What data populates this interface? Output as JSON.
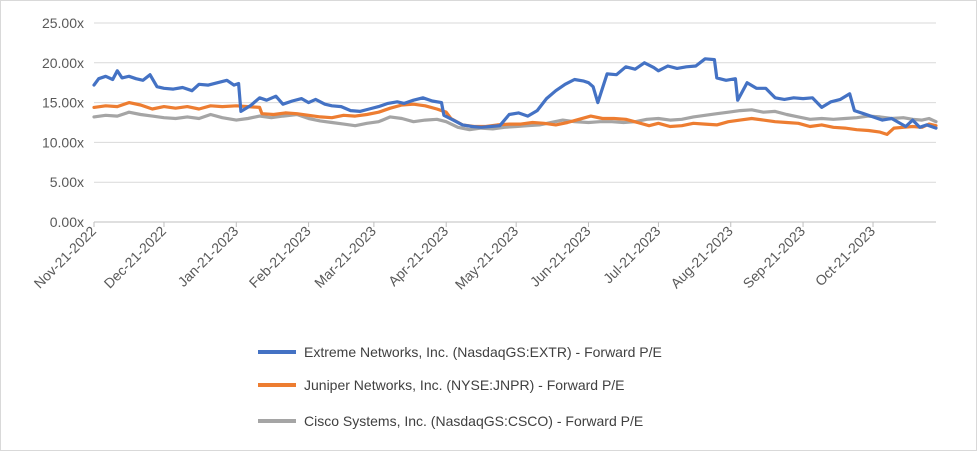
{
  "chart_data": {
    "type": "line",
    "title": "",
    "xlabel": "",
    "ylabel": "",
    "ylim": [
      0,
      25
    ],
    "y_ticks": [
      "0.00x",
      "5.00x",
      "10.00x",
      "15.00x",
      "20.00x",
      "25.00x"
    ],
    "y_tick_values": [
      0,
      5,
      10,
      15,
      20,
      25
    ],
    "x_range": [
      "2022-11-21",
      "2023-11-17"
    ],
    "x_ticks": [
      "Nov-21-2022",
      "Dec-21-2022",
      "Jan-21-2023",
      "Feb-21-2023",
      "Mar-21-2023",
      "Apr-21-2023",
      "May-21-2023",
      "Jun-21-2023",
      "Jul-21-2023",
      "Aug-21-2023",
      "Sep-21-2023",
      "Oct-21-2023"
    ],
    "x_tick_dates": [
      "2022-11-21",
      "2022-12-21",
      "2023-01-21",
      "2023-02-21",
      "2023-03-21",
      "2023-04-21",
      "2023-05-21",
      "2023-06-21",
      "2023-07-21",
      "2023-08-21",
      "2023-09-21",
      "2023-10-21"
    ],
    "grid": "horizontal",
    "legend_position": "bottom",
    "series": [
      {
        "name": "Extreme Networks, Inc. (NasdaqGS:EXTR) - Forward P/E",
        "color": "#4472C4",
        "points": [
          [
            "2022-11-21",
            17.2
          ],
          [
            "2022-11-23",
            18.0
          ],
          [
            "2022-11-26",
            18.3
          ],
          [
            "2022-11-29",
            17.9
          ],
          [
            "2022-12-01",
            19.0
          ],
          [
            "2022-12-03",
            18.1
          ],
          [
            "2022-12-06",
            18.3
          ],
          [
            "2022-12-09",
            18.0
          ],
          [
            "2022-12-12",
            17.8
          ],
          [
            "2022-12-15",
            18.5
          ],
          [
            "2022-12-18",
            17.0
          ],
          [
            "2022-12-21",
            16.8
          ],
          [
            "2022-12-25",
            16.7
          ],
          [
            "2022-12-29",
            16.9
          ],
          [
            "2023-01-02",
            16.5
          ],
          [
            "2023-01-05",
            17.3
          ],
          [
            "2023-01-09",
            17.2
          ],
          [
            "2023-01-13",
            17.5
          ],
          [
            "2023-01-17",
            17.8
          ],
          [
            "2023-01-20",
            17.2
          ],
          [
            "2023-01-22",
            17.4
          ],
          [
            "2023-01-23",
            13.9
          ],
          [
            "2023-01-27",
            14.6
          ],
          [
            "2023-01-31",
            15.6
          ],
          [
            "2023-02-03",
            15.3
          ],
          [
            "2023-02-07",
            15.8
          ],
          [
            "2023-02-10",
            14.8
          ],
          [
            "2023-02-14",
            15.2
          ],
          [
            "2023-02-18",
            15.5
          ],
          [
            "2023-02-21",
            15.0
          ],
          [
            "2023-02-24",
            15.4
          ],
          [
            "2023-02-28",
            14.8
          ],
          [
            "2023-03-03",
            14.6
          ],
          [
            "2023-03-07",
            14.5
          ],
          [
            "2023-03-11",
            14.0
          ],
          [
            "2023-03-15",
            13.9
          ],
          [
            "2023-03-19",
            14.2
          ],
          [
            "2023-03-23",
            14.5
          ],
          [
            "2023-03-27",
            14.9
          ],
          [
            "2023-03-31",
            15.1
          ],
          [
            "2023-04-03",
            14.9
          ],
          [
            "2023-04-07",
            15.3
          ],
          [
            "2023-04-11",
            15.6
          ],
          [
            "2023-04-15",
            15.2
          ],
          [
            "2023-04-19",
            15.0
          ],
          [
            "2023-04-20",
            13.4
          ],
          [
            "2023-04-24",
            12.8
          ],
          [
            "2023-04-28",
            12.2
          ],
          [
            "2023-05-02",
            12.0
          ],
          [
            "2023-05-06",
            11.9
          ],
          [
            "2023-05-10",
            12.0
          ],
          [
            "2023-05-14",
            12.1
          ],
          [
            "2023-05-18",
            13.5
          ],
          [
            "2023-05-22",
            13.7
          ],
          [
            "2023-05-26",
            13.3
          ],
          [
            "2023-05-30",
            14.0
          ],
          [
            "2023-06-03",
            15.5
          ],
          [
            "2023-06-07",
            16.5
          ],
          [
            "2023-06-11",
            17.3
          ],
          [
            "2023-06-15",
            17.9
          ],
          [
            "2023-06-19",
            17.7
          ],
          [
            "2023-06-21",
            17.5
          ],
          [
            "2023-06-23",
            17.0
          ],
          [
            "2023-06-25",
            15.0
          ],
          [
            "2023-06-29",
            18.6
          ],
          [
            "2023-07-03",
            18.5
          ],
          [
            "2023-07-07",
            19.5
          ],
          [
            "2023-07-11",
            19.2
          ],
          [
            "2023-07-15",
            20.0
          ],
          [
            "2023-07-19",
            19.4
          ],
          [
            "2023-07-21",
            19.0
          ],
          [
            "2023-07-25",
            19.6
          ],
          [
            "2023-07-29",
            19.3
          ],
          [
            "2023-08-02",
            19.5
          ],
          [
            "2023-08-06",
            19.6
          ],
          [
            "2023-08-10",
            20.5
          ],
          [
            "2023-08-14",
            20.4
          ],
          [
            "2023-08-15",
            18.1
          ],
          [
            "2023-08-19",
            17.8
          ],
          [
            "2023-08-23",
            18.0
          ],
          [
            "2023-08-24",
            15.3
          ],
          [
            "2023-08-28",
            17.5
          ],
          [
            "2023-09-01",
            16.8
          ],
          [
            "2023-09-05",
            16.8
          ],
          [
            "2023-09-09",
            15.6
          ],
          [
            "2023-09-13",
            15.4
          ],
          [
            "2023-09-17",
            15.6
          ],
          [
            "2023-09-21",
            15.5
          ],
          [
            "2023-09-25",
            15.6
          ],
          [
            "2023-09-29",
            14.4
          ],
          [
            "2023-10-03",
            15.1
          ],
          [
            "2023-10-07",
            15.4
          ],
          [
            "2023-10-11",
            16.1
          ],
          [
            "2023-10-13",
            14.0
          ],
          [
            "2023-10-17",
            13.6
          ],
          [
            "2023-10-21",
            13.2
          ],
          [
            "2023-10-25",
            12.8
          ],
          [
            "2023-10-29",
            13.0
          ],
          [
            "2023-11-01",
            12.5
          ],
          [
            "2023-11-04",
            12.0
          ],
          [
            "2023-11-07",
            12.8
          ],
          [
            "2023-11-10",
            11.9
          ],
          [
            "2023-11-13",
            12.2
          ],
          [
            "2023-11-17",
            11.8
          ]
        ]
      },
      {
        "name": "Juniper Networks, Inc. (NYSE:JNPR) - Forward P/E",
        "color": "#ED7D31",
        "points": [
          [
            "2022-11-21",
            14.4
          ],
          [
            "2022-11-26",
            14.6
          ],
          [
            "2022-12-01",
            14.5
          ],
          [
            "2022-12-06",
            15.0
          ],
          [
            "2022-12-11",
            14.7
          ],
          [
            "2022-12-16",
            14.2
          ],
          [
            "2022-12-21",
            14.5
          ],
          [
            "2022-12-26",
            14.3
          ],
          [
            "2022-12-31",
            14.5
          ],
          [
            "2023-01-05",
            14.2
          ],
          [
            "2023-01-10",
            14.6
          ],
          [
            "2023-01-15",
            14.5
          ],
          [
            "2023-01-21",
            14.6
          ],
          [
            "2023-01-26",
            14.5
          ],
          [
            "2023-01-31",
            14.4
          ],
          [
            "2023-02-01",
            13.6
          ],
          [
            "2023-02-06",
            13.5
          ],
          [
            "2023-02-11",
            13.7
          ],
          [
            "2023-02-16",
            13.6
          ],
          [
            "2023-02-21",
            13.4
          ],
          [
            "2023-02-26",
            13.2
          ],
          [
            "2023-03-03",
            13.1
          ],
          [
            "2023-03-08",
            13.4
          ],
          [
            "2023-03-13",
            13.3
          ],
          [
            "2023-03-18",
            13.5
          ],
          [
            "2023-03-23",
            13.8
          ],
          [
            "2023-03-28",
            14.3
          ],
          [
            "2023-04-02",
            14.7
          ],
          [
            "2023-04-07",
            14.8
          ],
          [
            "2023-04-12",
            14.6
          ],
          [
            "2023-04-17",
            14.2
          ],
          [
            "2023-04-21",
            13.8
          ],
          [
            "2023-04-23",
            13.0
          ],
          [
            "2023-04-28",
            12.2
          ],
          [
            "2023-05-03",
            12.0
          ],
          [
            "2023-05-08",
            12.0
          ],
          [
            "2023-05-13",
            12.2
          ],
          [
            "2023-05-18",
            12.3
          ],
          [
            "2023-05-23",
            12.3
          ],
          [
            "2023-05-28",
            12.5
          ],
          [
            "2023-06-02",
            12.4
          ],
          [
            "2023-06-07",
            12.2
          ],
          [
            "2023-06-12",
            12.5
          ],
          [
            "2023-06-17",
            12.9
          ],
          [
            "2023-06-22",
            13.3
          ],
          [
            "2023-06-27",
            13.0
          ],
          [
            "2023-07-02",
            13.0
          ],
          [
            "2023-07-07",
            12.9
          ],
          [
            "2023-07-12",
            12.5
          ],
          [
            "2023-07-17",
            12.1
          ],
          [
            "2023-07-21",
            12.4
          ],
          [
            "2023-07-26",
            12.0
          ],
          [
            "2023-07-31",
            12.1
          ],
          [
            "2023-08-05",
            12.4
          ],
          [
            "2023-08-10",
            12.3
          ],
          [
            "2023-08-15",
            12.2
          ],
          [
            "2023-08-20",
            12.6
          ],
          [
            "2023-08-25",
            12.8
          ],
          [
            "2023-08-30",
            13.0
          ],
          [
            "2023-09-04",
            12.8
          ],
          [
            "2023-09-09",
            12.6
          ],
          [
            "2023-09-14",
            12.5
          ],
          [
            "2023-09-19",
            12.4
          ],
          [
            "2023-09-24",
            12.0
          ],
          [
            "2023-09-29",
            12.2
          ],
          [
            "2023-10-04",
            11.9
          ],
          [
            "2023-10-09",
            11.8
          ],
          [
            "2023-10-14",
            11.6
          ],
          [
            "2023-10-19",
            11.5
          ],
          [
            "2023-10-24",
            11.3
          ],
          [
            "2023-10-27",
            11.0
          ],
          [
            "2023-10-30",
            11.8
          ],
          [
            "2023-11-03",
            11.9
          ],
          [
            "2023-11-07",
            12.0
          ],
          [
            "2023-11-11",
            11.9
          ],
          [
            "2023-11-14",
            12.3
          ],
          [
            "2023-11-17",
            12.1
          ]
        ]
      },
      {
        "name": "Cisco Systems, Inc. (NasdaqGS:CSCO) - Forward P/E",
        "color": "#A5A5A5",
        "points": [
          [
            "2022-11-21",
            13.2
          ],
          [
            "2022-11-26",
            13.4
          ],
          [
            "2022-12-01",
            13.3
          ],
          [
            "2022-12-06",
            13.8
          ],
          [
            "2022-12-11",
            13.5
          ],
          [
            "2022-12-16",
            13.3
          ],
          [
            "2022-12-21",
            13.1
          ],
          [
            "2022-12-26",
            13.0
          ],
          [
            "2022-12-31",
            13.2
          ],
          [
            "2023-01-05",
            13.0
          ],
          [
            "2023-01-10",
            13.5
          ],
          [
            "2023-01-15",
            13.1
          ],
          [
            "2023-01-21",
            12.8
          ],
          [
            "2023-01-26",
            13.0
          ],
          [
            "2023-01-31",
            13.3
          ],
          [
            "2023-02-05",
            13.1
          ],
          [
            "2023-02-10",
            13.3
          ],
          [
            "2023-02-16",
            13.5
          ],
          [
            "2023-02-21",
            13.0
          ],
          [
            "2023-02-26",
            12.7
          ],
          [
            "2023-03-03",
            12.5
          ],
          [
            "2023-03-08",
            12.3
          ],
          [
            "2023-03-13",
            12.1
          ],
          [
            "2023-03-18",
            12.4
          ],
          [
            "2023-03-23",
            12.6
          ],
          [
            "2023-03-28",
            13.2
          ],
          [
            "2023-04-02",
            13.0
          ],
          [
            "2023-04-07",
            12.6
          ],
          [
            "2023-04-12",
            12.8
          ],
          [
            "2023-04-17",
            12.9
          ],
          [
            "2023-04-21",
            12.6
          ],
          [
            "2023-04-26",
            11.9
          ],
          [
            "2023-05-01",
            11.6
          ],
          [
            "2023-05-06",
            11.8
          ],
          [
            "2023-05-11",
            11.7
          ],
          [
            "2023-05-16",
            11.9
          ],
          [
            "2023-05-21",
            12.0
          ],
          [
            "2023-05-26",
            12.1
          ],
          [
            "2023-05-31",
            12.2
          ],
          [
            "2023-06-05",
            12.5
          ],
          [
            "2023-06-10",
            12.8
          ],
          [
            "2023-06-15",
            12.6
          ],
          [
            "2023-06-21",
            12.5
          ],
          [
            "2023-06-26",
            12.6
          ],
          [
            "2023-07-01",
            12.6
          ],
          [
            "2023-07-06",
            12.5
          ],
          [
            "2023-07-11",
            12.6
          ],
          [
            "2023-07-16",
            12.9
          ],
          [
            "2023-07-21",
            13.0
          ],
          [
            "2023-07-26",
            12.8
          ],
          [
            "2023-07-31",
            12.9
          ],
          [
            "2023-08-05",
            13.2
          ],
          [
            "2023-08-10",
            13.4
          ],
          [
            "2023-08-15",
            13.6
          ],
          [
            "2023-08-20",
            13.8
          ],
          [
            "2023-08-25",
            14.0
          ],
          [
            "2023-08-30",
            14.1
          ],
          [
            "2023-09-04",
            13.8
          ],
          [
            "2023-09-09",
            13.9
          ],
          [
            "2023-09-14",
            13.5
          ],
          [
            "2023-09-19",
            13.2
          ],
          [
            "2023-09-24",
            12.9
          ],
          [
            "2023-09-29",
            13.0
          ],
          [
            "2023-10-04",
            12.9
          ],
          [
            "2023-10-09",
            13.0
          ],
          [
            "2023-10-14",
            13.1
          ],
          [
            "2023-10-19",
            13.3
          ],
          [
            "2023-10-24",
            13.2
          ],
          [
            "2023-10-29",
            13.0
          ],
          [
            "2023-11-03",
            13.1
          ],
          [
            "2023-11-07",
            12.9
          ],
          [
            "2023-11-11",
            12.8
          ],
          [
            "2023-11-14",
            13.0
          ],
          [
            "2023-11-17",
            12.6
          ]
        ]
      }
    ]
  }
}
